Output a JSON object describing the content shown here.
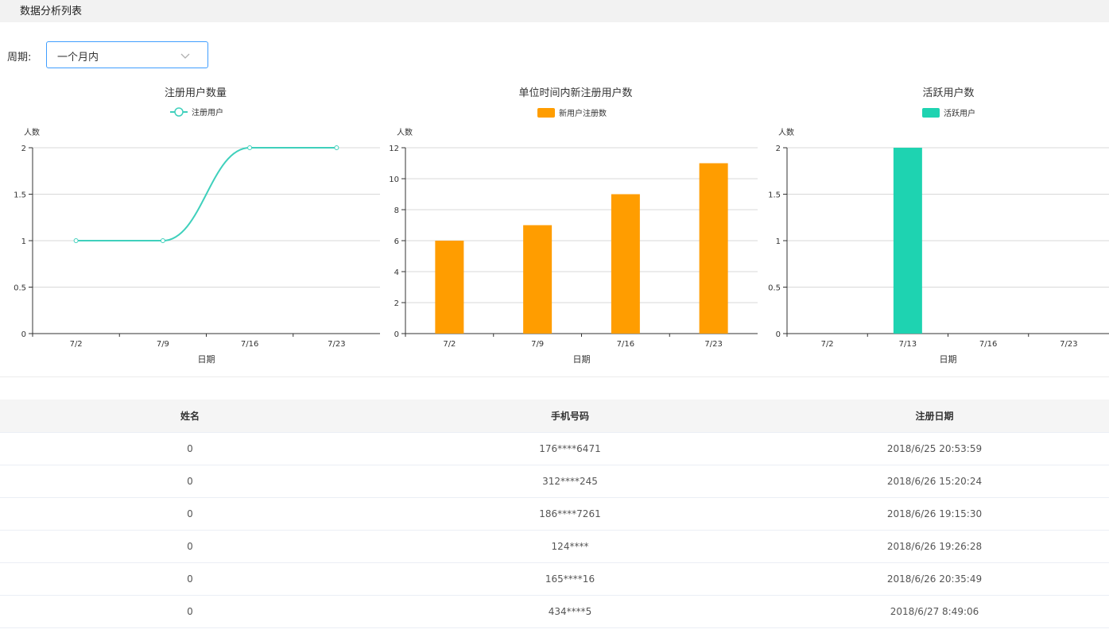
{
  "page": {
    "title": "数据分析列表"
  },
  "filter": {
    "label": "周期:",
    "selected": "一个月内"
  },
  "chart_data": [
    {
      "type": "line",
      "title": "注册用户数量",
      "series": [
        {
          "name": "注册用户",
          "values": [
            1,
            1,
            2,
            2
          ]
        }
      ],
      "categories": [
        "7/2",
        "7/9",
        "7/16",
        "7/23"
      ],
      "xlabel": "日期",
      "ylabel": "人数",
      "ylim": [
        0,
        2
      ],
      "yticks": [
        "0",
        "0.5",
        "1",
        "1.5",
        "2"
      ],
      "grid": true,
      "legend": "top-center",
      "color": "#3fd0bc"
    },
    {
      "type": "bar",
      "title": "单位时间内新注册用户数",
      "series": [
        {
          "name": "新用户注册数",
          "values": [
            6,
            7,
            9,
            11
          ]
        }
      ],
      "categories": [
        "7/2",
        "7/9",
        "7/16",
        "7/23"
      ],
      "xlabel": "日期",
      "ylabel": "人数",
      "ylim": [
        0,
        12
      ],
      "yticks": [
        "0",
        "2",
        "4",
        "6",
        "8",
        "10",
        "12"
      ],
      "grid": true,
      "legend": "top-center",
      "color": "#ff9d00"
    },
    {
      "type": "bar",
      "title": "活跃用户数",
      "series": [
        {
          "name": "活跃用户",
          "values": [
            0,
            2,
            0,
            0
          ]
        }
      ],
      "categories": [
        "7/2",
        "7/13",
        "7/16",
        "7/23"
      ],
      "xlabel": "日期",
      "ylabel": "人数",
      "ylim": [
        0,
        2
      ],
      "yticks": [
        "0",
        "0.5",
        "1",
        "1.5",
        "2"
      ],
      "grid": true,
      "legend": "top-center",
      "color": "#1ed3b1"
    }
  ],
  "table": {
    "columns": [
      "姓名",
      "手机号码",
      "注册日期"
    ],
    "rows": [
      [
        "0",
        "176****6471",
        "2018/6/25 20:53:59"
      ],
      [
        "0",
        "312****245",
        "2018/6/26 15:20:24"
      ],
      [
        "0",
        "186****7261",
        "2018/6/26 19:15:30"
      ],
      [
        "0",
        "124****",
        "2018/6/26 19:26:28"
      ],
      [
        "0",
        "165****16",
        "2018/6/26 20:35:49"
      ],
      [
        "0",
        "434****5",
        "2018/6/27 8:49:06"
      ]
    ]
  }
}
